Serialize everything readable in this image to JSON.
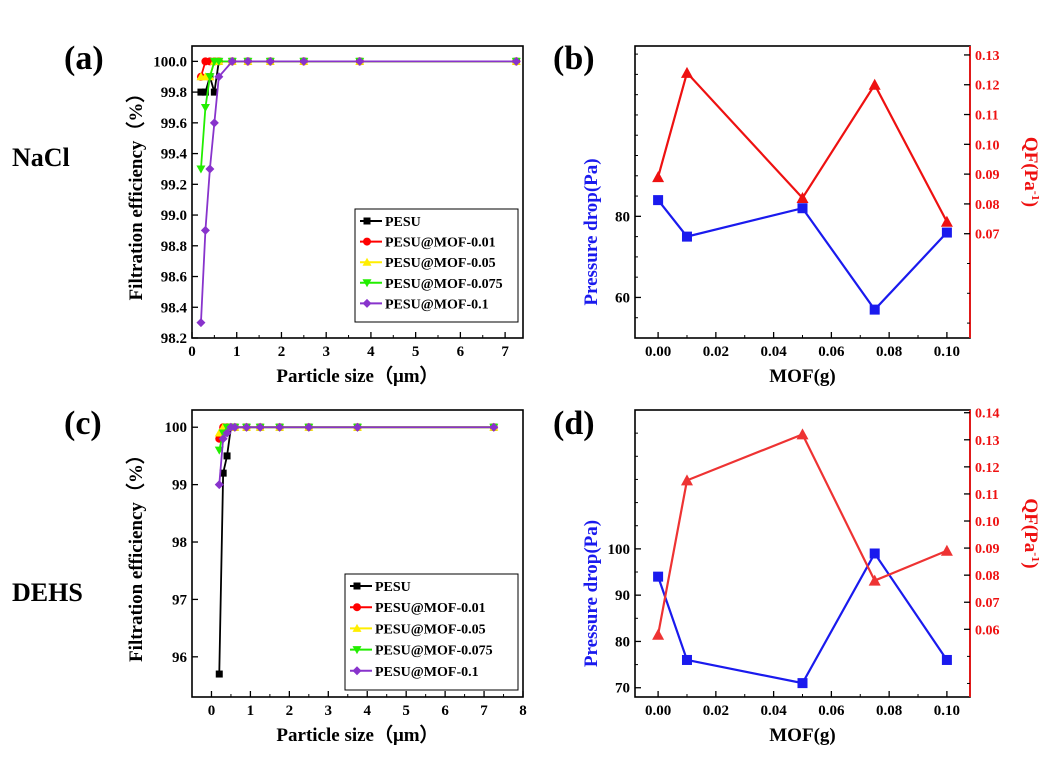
{
  "labels": {
    "a": "(a)",
    "b": "(b)",
    "c": "(c)",
    "d": "(d)",
    "row1": "NaCl",
    "row2": "DEHS"
  },
  "colors": {
    "PESU": "#000000",
    "MOF001": "#ff0000",
    "MOF005": "#ffee00",
    "MOF0075": "#22ee00",
    "MOF01": "#8833cc",
    "blue": "#1a1aee",
    "red": "#ee1111",
    "red2": "#ee3333"
  },
  "chart_data": [
    {
      "id": "a",
      "type": "line",
      "xlabel": "Particle size（μm）",
      "ylabel": "Filtration efficiency（%）",
      "xlim": [
        0,
        7.4
      ],
      "ylim": [
        98.2,
        100.1
      ],
      "xticks": [
        0,
        1,
        2,
        3,
        4,
        5,
        6,
        7
      ],
      "yticks": [
        98.2,
        98.4,
        98.6,
        98.8,
        99.0,
        99.2,
        99.4,
        99.6,
        99.8,
        100.0
      ],
      "ytick_labels": [
        "98.2",
        "98.4",
        "98.6",
        "98.8",
        "99.0",
        "99.2",
        "99.4",
        "99.6",
        "99.8",
        "100.0"
      ],
      "legend_pos": "bottom-right",
      "series": [
        {
          "name": "PESU",
          "marker": "square",
          "color": "#000000",
          "x": [
            0.2,
            0.3,
            0.4,
            0.5,
            0.6,
            0.9,
            1.25,
            1.75,
            2.5,
            3.75,
            7.25
          ],
          "y": [
            99.8,
            99.8,
            99.9,
            99.8,
            100,
            100,
            100,
            100,
            100,
            100,
            100
          ]
        },
        {
          "name": "PESU@MOF-0.01",
          "marker": "circle",
          "color": "#ff0000",
          "x": [
            0.2,
            0.3,
            0.4,
            0.5,
            0.6,
            0.9,
            1.25,
            1.75,
            2.5,
            3.75,
            7.25
          ],
          "y": [
            99.9,
            100,
            100,
            100,
            100,
            100,
            100,
            100,
            100,
            100,
            100
          ]
        },
        {
          "name": "PESU@MOF-0.05",
          "marker": "triangle-up",
          "color": "#ffee00",
          "x": [
            0.2,
            0.3,
            0.4,
            0.5,
            0.6,
            0.9,
            1.25,
            1.75,
            2.5,
            3.75,
            7.25
          ],
          "y": [
            99.9,
            99.9,
            99.9,
            100,
            100,
            100,
            100,
            100,
            100,
            100,
            100
          ]
        },
        {
          "name": "PESU@MOF-0.075",
          "marker": "triangle-down",
          "color": "#22ee00",
          "x": [
            0.2,
            0.3,
            0.4,
            0.5,
            0.6,
            0.9,
            1.25,
            1.75,
            2.5,
            3.75,
            7.25
          ],
          "y": [
            99.3,
            99.7,
            99.9,
            100,
            100,
            100,
            100,
            100,
            100,
            100,
            100
          ]
        },
        {
          "name": "PESU@MOF-0.1",
          "marker": "diamond",
          "color": "#8833cc",
          "x": [
            0.2,
            0.3,
            0.4,
            0.5,
            0.6,
            0.9,
            1.25,
            1.75,
            2.5,
            3.75,
            7.25
          ],
          "y": [
            98.3,
            98.9,
            99.3,
            99.6,
            99.9,
            100,
            100,
            100,
            100,
            100,
            100
          ]
        }
      ]
    },
    {
      "id": "b",
      "type": "line",
      "xlabel": "MOF(g)",
      "ylabel": "Pressure drop(Pa)",
      "y2label": "QF(Pa",
      "xlim": [
        -0.008,
        0.108
      ],
      "ylim": [
        50,
        122
      ],
      "y2lim": [
        0.035,
        0.133
      ],
      "xticks": [
        0.0,
        0.02,
        0.04,
        0.06,
        0.08,
        0.1
      ],
      "xtick_labels": [
        "0.00",
        "0.02",
        "0.04",
        "0.06",
        "0.08",
        "0.10"
      ],
      "yticks": [
        60,
        80
      ],
      "ytick_labels": [
        "60",
        "80"
      ],
      "yticks_minor": [
        50,
        55,
        65,
        70,
        75,
        85,
        90,
        95,
        100,
        105,
        110,
        115,
        120
      ],
      "y2ticks": [
        0.07,
        0.08,
        0.09,
        0.1,
        0.11,
        0.12,
        0.13
      ],
      "y2tick_labels": [
        "0.07",
        "0.08",
        "0.09",
        "0.10",
        "0.11",
        "0.12",
        "0.13"
      ],
      "y2ticks_minor": [
        0.04,
        0.05,
        0.06
      ],
      "series": [
        {
          "name": "Pressure drop",
          "axis": "left",
          "marker": "square",
          "color": "#1a1aee",
          "x": [
            0,
            0.01,
            0.05,
            0.075,
            0.1
          ],
          "y": [
            84,
            75,
            82,
            57,
            76
          ]
        },
        {
          "name": "QF",
          "axis": "right",
          "marker": "triangle-up",
          "color": "#ee1111",
          "x": [
            0,
            0.01,
            0.05,
            0.075,
            0.1
          ],
          "y": [
            0.089,
            0.124,
            0.082,
            0.12,
            0.074
          ]
        }
      ]
    },
    {
      "id": "c",
      "type": "line",
      "xlabel": "Particle size（μm）",
      "ylabel": "Filtration efficiency（%）",
      "xlim": [
        -0.5,
        8
      ],
      "ylim": [
        95.3,
        100.3
      ],
      "xticks": [
        0,
        1,
        2,
        3,
        4,
        5,
        6,
        7,
        8
      ],
      "yticks": [
        96,
        97,
        98,
        99,
        100
      ],
      "ytick_labels": [
        "96",
        "97",
        "98",
        "99",
        "100"
      ],
      "legend_pos": "bottom-right",
      "series": [
        {
          "name": "PESU",
          "marker": "square",
          "color": "#000000",
          "x": [
            0.2,
            0.3,
            0.4,
            0.5,
            0.6,
            0.9,
            1.25,
            1.75,
            2.5,
            3.75,
            7.25
          ],
          "y": [
            95.7,
            99.2,
            99.5,
            100,
            100,
            100,
            100,
            100,
            100,
            100,
            100
          ]
        },
        {
          "name": "PESU@MOF-0.01",
          "marker": "circle",
          "color": "#ff0000",
          "x": [
            0.2,
            0.3,
            0.4,
            0.5,
            0.6,
            0.9,
            1.25,
            1.75,
            2.5,
            3.75,
            7.25
          ],
          "y": [
            99.8,
            100,
            100,
            100,
            100,
            100,
            100,
            100,
            100,
            100,
            100
          ]
        },
        {
          "name": "PESU@MOF-0.05",
          "marker": "triangle-up",
          "color": "#ffee00",
          "x": [
            0.2,
            0.3,
            0.4,
            0.5,
            0.6,
            0.9,
            1.25,
            1.75,
            2.5,
            3.75,
            7.25
          ],
          "y": [
            99.9,
            100,
            100,
            100,
            100,
            100,
            100,
            100,
            100,
            100,
            100
          ]
        },
        {
          "name": "PESU@MOF-0.075",
          "marker": "triangle-down",
          "color": "#22ee00",
          "x": [
            0.2,
            0.3,
            0.4,
            0.5,
            0.6,
            0.9,
            1.25,
            1.75,
            2.5,
            3.75,
            7.25
          ],
          "y": [
            99.6,
            99.9,
            100,
            100,
            100,
            100,
            100,
            100,
            100,
            100,
            100
          ]
        },
        {
          "name": "PESU@MOF-0.1",
          "marker": "diamond",
          "color": "#8833cc",
          "x": [
            0.2,
            0.3,
            0.4,
            0.5,
            0.6,
            0.9,
            1.25,
            1.75,
            2.5,
            3.75,
            7.25
          ],
          "y": [
            99.0,
            99.8,
            99.9,
            100,
            100,
            100,
            100,
            100,
            100,
            100,
            100
          ]
        }
      ]
    },
    {
      "id": "d",
      "type": "line",
      "xlabel": "MOF(g)",
      "ylabel": "Pressure drop(Pa)",
      "y2label": "QF(Pa",
      "xlim": [
        -0.008,
        0.108
      ],
      "ylim": [
        68,
        130
      ],
      "y2lim": [
        0.035,
        0.141
      ],
      "xticks": [
        0.0,
        0.02,
        0.04,
        0.06,
        0.08,
        0.1
      ],
      "xtick_labels": [
        "0.00",
        "0.02",
        "0.04",
        "0.06",
        "0.08",
        "0.10"
      ],
      "yticks": [
        70,
        80,
        90,
        100
      ],
      "ytick_labels": [
        "70",
        "80",
        "90",
        "100"
      ],
      "yticks_minor": [
        75,
        85,
        95,
        105,
        110,
        115,
        120,
        125,
        130
      ],
      "y2ticks": [
        0.06,
        0.07,
        0.08,
        0.09,
        0.1,
        0.11,
        0.12,
        0.13,
        0.14
      ],
      "y2tick_labels": [
        "0.06",
        "0.07",
        "0.08",
        "0.09",
        "0.10",
        "0.11",
        "0.12",
        "0.13",
        "0.14"
      ],
      "y2ticks_minor": [
        0.04,
        0.05
      ],
      "series": [
        {
          "name": "Pressure drop",
          "axis": "left",
          "marker": "square",
          "color": "#1a1aee",
          "x": [
            0,
            0.01,
            0.05,
            0.075,
            0.1
          ],
          "y": [
            94,
            76,
            71,
            99,
            76
          ]
        },
        {
          "name": "QF",
          "axis": "right",
          "marker": "triangle-up",
          "color": "#ee3333",
          "x": [
            0,
            0.01,
            0.05,
            0.075,
            0.1
          ],
          "y": [
            0.058,
            0.115,
            0.132,
            0.078,
            0.089
          ]
        }
      ]
    }
  ]
}
